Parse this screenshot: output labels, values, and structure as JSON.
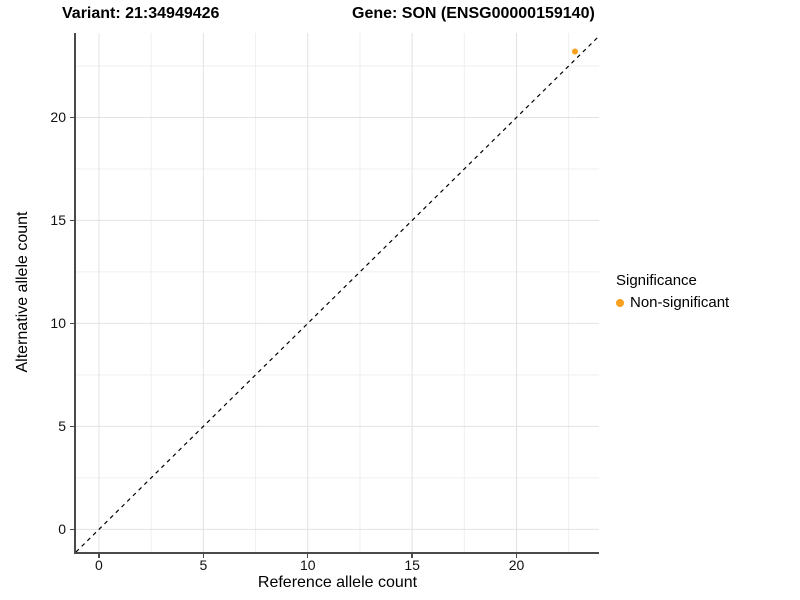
{
  "chart_data": {
    "type": "scatter",
    "title_variant": "Variant: 21:34949426",
    "title_gene": "Gene: SON (ENSG00000159140)",
    "xlabel": "Reference allele count",
    "ylabel": "Alternative allele count",
    "xlim": [
      -1.1,
      23.95
    ],
    "ylim": [
      -1.1,
      24.1
    ],
    "x_ticks": [
      0,
      5,
      10,
      15,
      20
    ],
    "y_ticks": [
      0,
      5,
      10,
      15,
      20
    ],
    "x_minor_ticks": [
      2.5,
      7.5,
      12.5,
      17.5,
      22.5
    ],
    "y_minor_ticks": [
      2.5,
      7.5,
      12.5,
      17.5,
      22.5
    ],
    "grid": "on",
    "identity_line": {
      "style": "dashed",
      "slope": 1,
      "intercept": 0,
      "color": "#000000"
    },
    "series": [
      {
        "name": "Non-significant",
        "color": "#F9A01E",
        "points": [
          {
            "x": 22.8,
            "y": 23.2
          }
        ]
      }
    ],
    "legend": {
      "title": "Significance",
      "position": "right",
      "items": [
        {
          "label": "Non-significant",
          "color": "#F9A01E"
        }
      ]
    },
    "colors": {
      "point_orange": "#F9A01E",
      "axis_line": "#4a4a4a",
      "major_grid": "#e2e2e2",
      "minor_grid": "#efefef"
    }
  }
}
